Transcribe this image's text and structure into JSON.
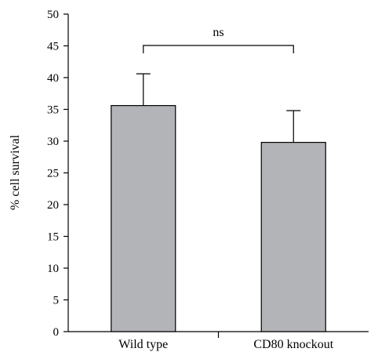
{
  "chart_data": {
    "type": "bar",
    "categories": [
      "Wild type",
      "CD80 knockout"
    ],
    "values": [
      35.6,
      29.8
    ],
    "error_upper": [
      40.6,
      34.8
    ],
    "ylabel": "% cell survival",
    "xlabel": "",
    "ylim": [
      0,
      50
    ],
    "yticks": [
      0,
      5,
      10,
      15,
      20,
      25,
      30,
      35,
      40,
      45,
      50
    ],
    "yticks_text": [
      "0",
      "5",
      "10",
      "15",
      "20",
      "25",
      "30",
      "35",
      "40",
      "45",
      "50"
    ],
    "grid": false,
    "bar_color": "#b3b4b8",
    "annotation": {
      "text": "ns",
      "between": [
        "Wild type",
        "CD80 knockout"
      ]
    }
  }
}
